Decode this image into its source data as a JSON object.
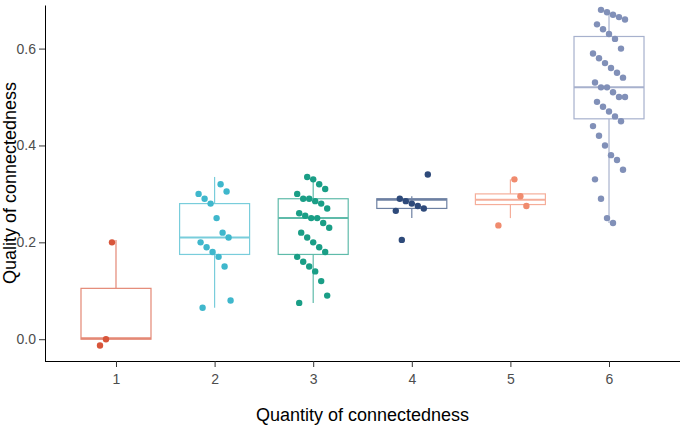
{
  "chart_data": {
    "type": "box",
    "x_label": "Quantity of connectedness",
    "y_label": "Quality of connectedness",
    "categories": [
      "1",
      "2",
      "3",
      "4",
      "5",
      "6"
    ],
    "ylim": [
      -0.045,
      0.69
    ],
    "yticks": [
      {
        "value": 0,
        "label": "0.0"
      },
      0.2,
      0.4,
      0.6
    ],
    "grid": false,
    "boxes": [
      {
        "color": "#d8553a",
        "whisker_low": 0.0,
        "q1": 0.0,
        "median": 0.002,
        "q3": 0.105,
        "whisker_high": 0.205,
        "points": [
          -0.013,
          0.0,
          0.2
        ]
      },
      {
        "color": "#3fb7cc",
        "whisker_low": 0.065,
        "q1": 0.175,
        "median": 0.21,
        "q3": 0.28,
        "whisker_high": 0.335,
        "points": [
          0.32,
          0.305,
          0.3,
          0.29,
          0.28,
          0.25,
          0.22,
          0.21,
          0.2,
          0.19,
          0.18,
          0.17,
          0.15,
          0.08,
          0.065
        ]
      },
      {
        "color": "#1a9e86",
        "whisker_low": 0.075,
        "q1": 0.175,
        "median": 0.25,
        "q3": 0.29,
        "whisker_high": 0.335,
        "points": [
          0.335,
          0.33,
          0.32,
          0.31,
          0.3,
          0.29,
          0.29,
          0.285,
          0.28,
          0.27,
          0.26,
          0.255,
          0.25,
          0.25,
          0.24,
          0.23,
          0.22,
          0.21,
          0.2,
          0.19,
          0.18,
          0.17,
          0.16,
          0.15,
          0.14,
          0.12,
          0.09,
          0.075
        ]
      },
      {
        "color": "#2e4a7a",
        "whisker_low": 0.25,
        "q1": 0.27,
        "median": 0.288,
        "q3": 0.29,
        "whisker_high": 0.295,
        "points": [
          0.34,
          0.29,
          0.285,
          0.28,
          0.275,
          0.27,
          0.265,
          0.205
        ]
      },
      {
        "color": "#f08b6e",
        "whisker_low": 0.25,
        "q1": 0.278,
        "median": 0.288,
        "q3": 0.3,
        "whisker_high": 0.33,
        "points": [
          0.33,
          0.295,
          0.275,
          0.235
        ]
      },
      {
        "color": "#8190b8",
        "whisker_low": 0.24,
        "q1": 0.455,
        "median": 0.52,
        "q3": 0.625,
        "whisker_high": 0.675,
        "points": [
          0.68,
          0.675,
          0.67,
          0.665,
          0.66,
          0.65,
          0.64,
          0.63,
          0.62,
          0.6,
          0.59,
          0.58,
          0.57,
          0.56,
          0.55,
          0.54,
          0.53,
          0.52,
          0.52,
          0.51,
          0.5,
          0.5,
          0.49,
          0.48,
          0.47,
          0.46,
          0.45,
          0.44,
          0.42,
          0.4,
          0.38,
          0.37,
          0.35,
          0.33,
          0.29,
          0.25,
          0.24
        ]
      }
    ]
  }
}
